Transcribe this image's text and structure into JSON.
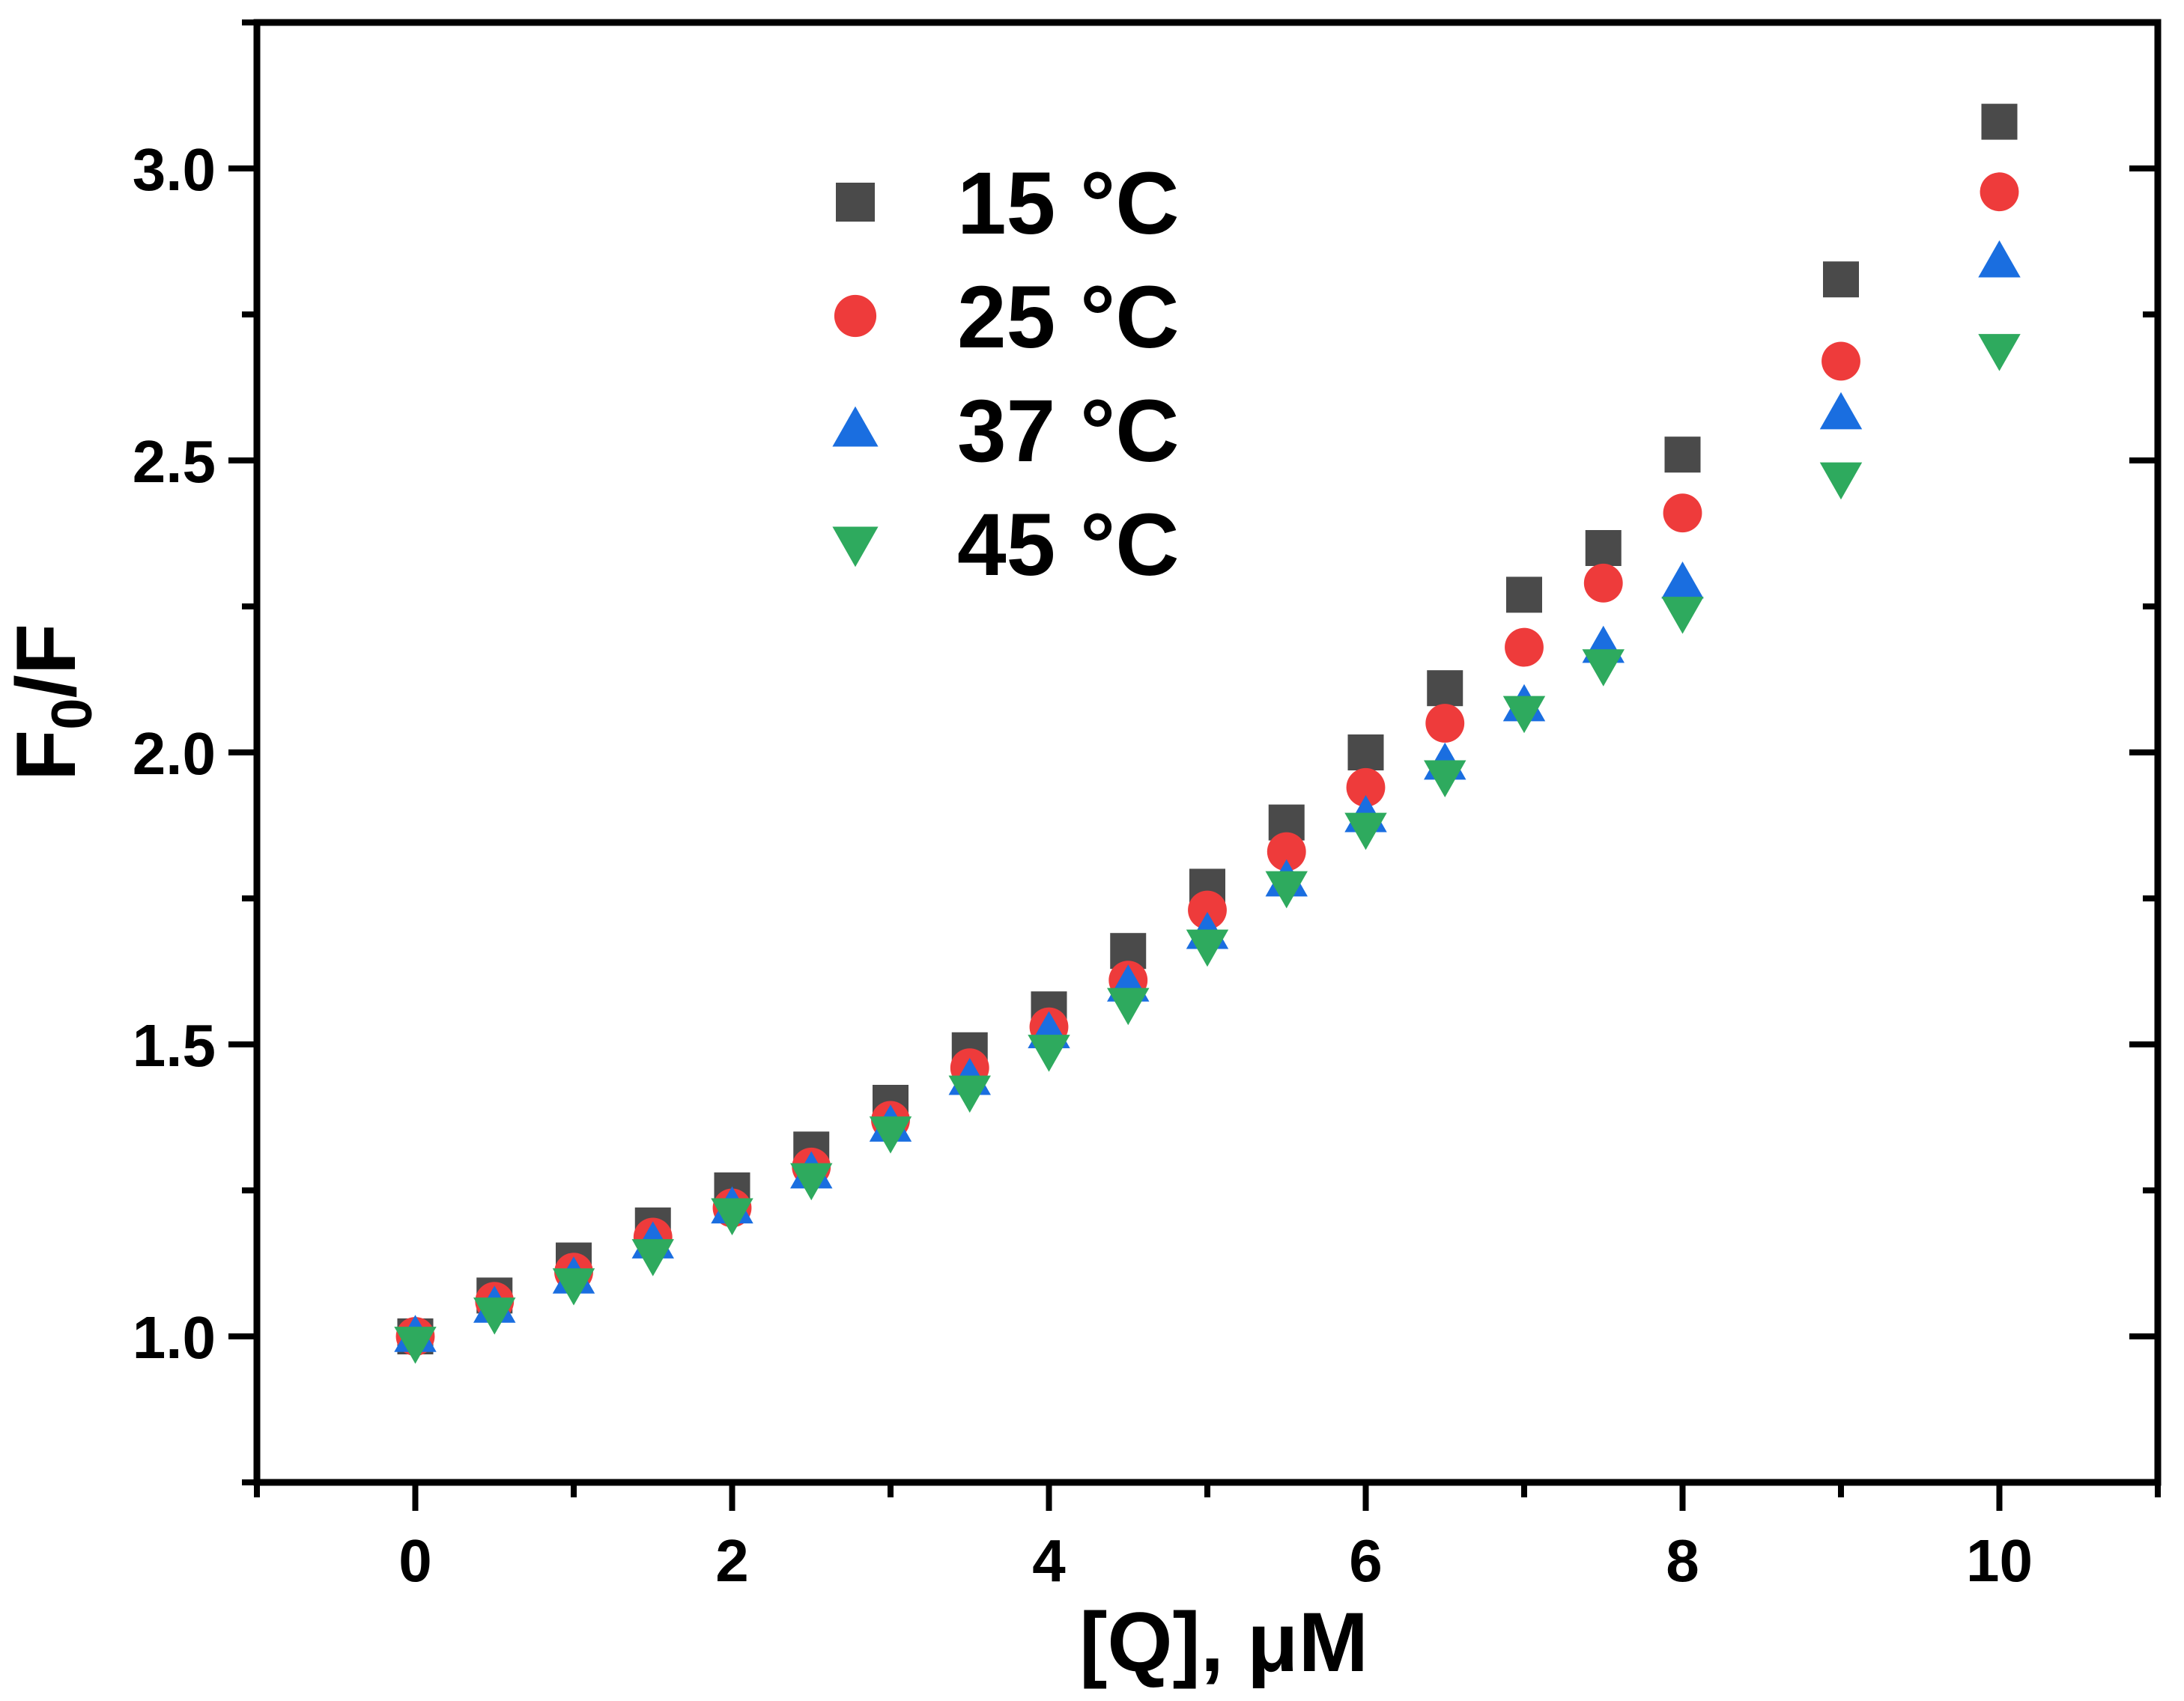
{
  "chart_data": {
    "type": "scatter",
    "title": "",
    "xlabel": "[Q], μM",
    "ylabel_main": "F",
    "ylabel_sub": "0",
    "ylabel_rest": "/F",
    "xlim": [
      -1,
      11
    ],
    "ylim": [
      0.75,
      3.25
    ],
    "xticks": [
      0,
      2,
      4,
      6,
      8,
      10
    ],
    "xtick_labels": [
      "0",
      "2",
      "4",
      "6",
      "8",
      "10"
    ],
    "yticks": [
      1.0,
      1.5,
      2.0,
      2.5,
      3.0
    ],
    "ytick_labels": [
      "1.0",
      "1.5",
      "2.0",
      "2.5",
      "3.0"
    ],
    "grid": false,
    "legend_position": "top-left",
    "x": [
      0,
      0.5,
      1,
      1.5,
      2,
      2.5,
      3,
      3.5,
      4,
      4.5,
      5,
      5.5,
      6,
      6.5,
      7,
      7.5,
      8,
      9,
      10
    ],
    "series": [
      {
        "name": "15 °C",
        "marker": "square",
        "color": "#4a4a4a",
        "values": [
          1.0,
          1.07,
          1.13,
          1.19,
          1.25,
          1.32,
          1.4,
          1.49,
          1.56,
          1.66,
          1.77,
          1.88,
          2.0,
          2.11,
          2.27,
          2.35,
          2.51,
          2.81,
          3.08
        ]
      },
      {
        "name": "25 °C",
        "marker": "circle",
        "color": "#ee3b3b",
        "values": [
          1.0,
          1.06,
          1.11,
          1.17,
          1.22,
          1.29,
          1.37,
          1.46,
          1.53,
          1.61,
          1.73,
          1.83,
          1.94,
          2.05,
          2.18,
          2.29,
          2.41,
          2.67,
          2.96
        ]
      },
      {
        "name": "37 °C",
        "marker": "triangle-up",
        "color": "#1a6ee0",
        "values": [
          1.0,
          1.05,
          1.1,
          1.16,
          1.22,
          1.28,
          1.36,
          1.44,
          1.52,
          1.6,
          1.69,
          1.78,
          1.89,
          1.98,
          2.08,
          2.18,
          2.29,
          2.58,
          2.84
        ]
      },
      {
        "name": "45 °C",
        "marker": "triangle-down",
        "color": "#2eaa5e",
        "values": [
          0.99,
          1.04,
          1.09,
          1.14,
          1.21,
          1.27,
          1.35,
          1.42,
          1.49,
          1.57,
          1.67,
          1.77,
          1.87,
          1.96,
          2.07,
          2.15,
          2.24,
          2.47,
          2.69
        ]
      }
    ]
  }
}
